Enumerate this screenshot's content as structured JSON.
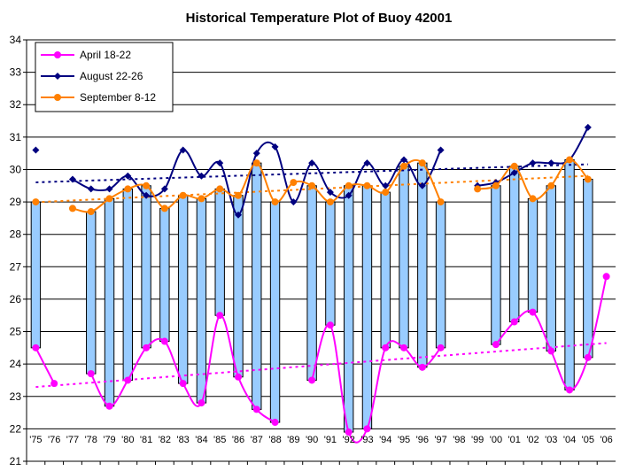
{
  "chart_data": {
    "type": "line",
    "title": "Historical Temperature Plot of Buoy 42001",
    "xlabel": "",
    "ylabel": "",
    "ylim": [
      21,
      34
    ],
    "yticks": [
      21,
      22,
      23,
      24,
      25,
      26,
      27,
      28,
      29,
      30,
      31,
      32,
      33,
      34
    ],
    "grid": true,
    "legend_position": "top-left",
    "categories": [
      "'75",
      "'76",
      "'77",
      "'78",
      "'79",
      "'80",
      "'81",
      "'82",
      "'83",
      "'84",
      "'85",
      "'86",
      "'87",
      "'88",
      "'89",
      "'90",
      "'91",
      "'92",
      "'93",
      "'94",
      "'95",
      "'96",
      "'97",
      "'98",
      "'99",
      "'00",
      "'01",
      "'02",
      "'03",
      "'04",
      "'05",
      "'06"
    ],
    "series": [
      {
        "name": "April 18-22",
        "color": "#ff00ff",
        "marker": "circle",
        "values": [
          24.5,
          23.4,
          null,
          23.7,
          22.7,
          23.5,
          24.5,
          24.7,
          23.4,
          22.8,
          25.5,
          23.6,
          22.6,
          22.2,
          null,
          23.5,
          25.2,
          21.9,
          22.0,
          24.5,
          24.5,
          23.9,
          24.5,
          null,
          null,
          24.6,
          25.3,
          25.6,
          24.4,
          23.2,
          24.2,
          26.7
        ]
      },
      {
        "name": "August 22-26",
        "color": "#000080",
        "marker": "diamond",
        "values": [
          30.6,
          null,
          29.7,
          29.4,
          29.4,
          29.8,
          29.2,
          29.4,
          30.6,
          29.8,
          30.2,
          28.6,
          30.5,
          30.7,
          29.0,
          30.2,
          29.3,
          29.2,
          30.2,
          29.5,
          30.3,
          29.5,
          30.6,
          null,
          29.5,
          29.6,
          29.9,
          30.2,
          30.2,
          30.3,
          31.3,
          null
        ]
      },
      {
        "name": "September 8-12",
        "color": "#ff8000",
        "marker": "circle",
        "values": [
          29.0,
          null,
          28.8,
          28.7,
          29.1,
          29.4,
          29.5,
          28.8,
          29.2,
          29.1,
          29.4,
          29.2,
          30.2,
          29.0,
          29.6,
          29.5,
          29.0,
          29.5,
          29.5,
          29.3,
          30.1,
          30.2,
          29.0,
          null,
          29.4,
          29.5,
          30.1,
          29.1,
          29.5,
          30.3,
          29.7,
          null
        ]
      }
    ],
    "range_bars": {
      "color": "#99ccff",
      "stroke": "#000000",
      "description_from_series": [
        "April 18-22",
        "September 8-12"
      ]
    },
    "trendlines": [
      {
        "series": "April 18-22",
        "style": "dotted",
        "color": "#ff00ff"
      },
      {
        "series": "August 22-26",
        "style": "dotted",
        "color": "#000080"
      },
      {
        "series": "September 8-12",
        "style": "dotted",
        "color": "#ff8000"
      }
    ]
  }
}
